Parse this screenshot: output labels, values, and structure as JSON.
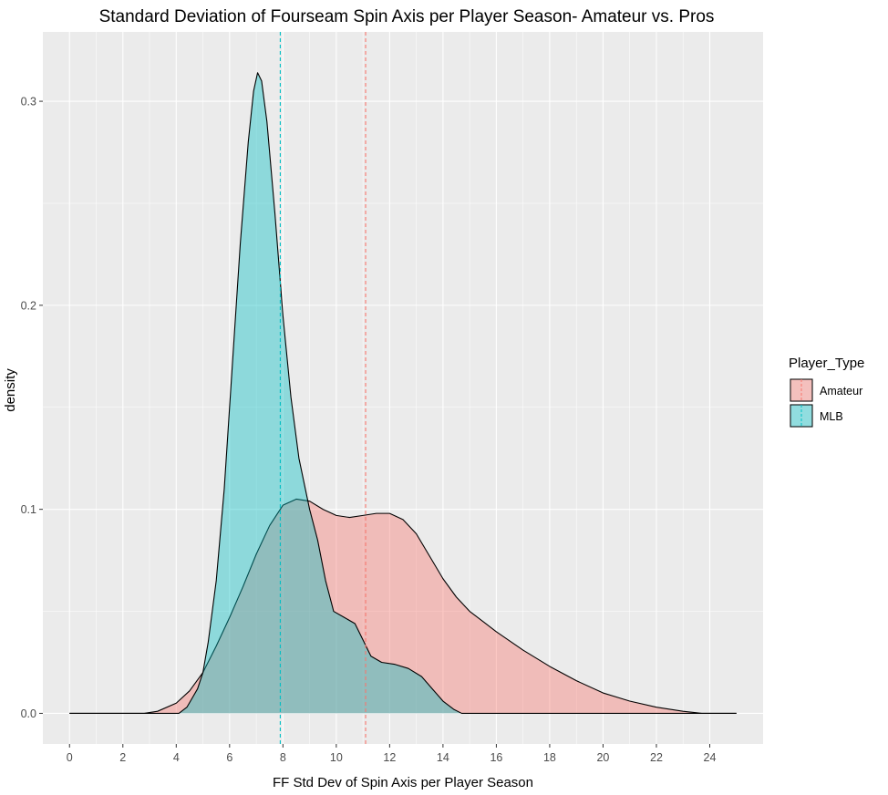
{
  "chart_data": {
    "type": "area",
    "title": "Standard Deviation of Fourseam Spin Axis per Player Season- Amateur vs. Pros",
    "xlabel": "FF Std Dev of Spin Axis per Player Season",
    "ylabel": "density",
    "xlim": [
      -1,
      26
    ],
    "ylim": [
      -0.015,
      0.334
    ],
    "x_ticks": [
      "0",
      "2",
      "4",
      "6",
      "8",
      "10",
      "12",
      "14",
      "16",
      "18",
      "20",
      "22",
      "24"
    ],
    "x_tick_values": [
      0,
      2,
      4,
      6,
      8,
      10,
      12,
      14,
      16,
      18,
      20,
      22,
      24
    ],
    "y_ticks": [
      "0.0",
      "0.1",
      "0.2",
      "0.3"
    ],
    "y_tick_values": [
      0.0,
      0.1,
      0.2,
      0.3
    ],
    "grid": true,
    "legend": {
      "title": "Player_Type",
      "position": "right"
    },
    "series": [
      {
        "name": "Amateur",
        "color": "#F8766D",
        "fill_opacity": 0.4,
        "mean_line": 11.1,
        "points": [
          [
            0,
            0
          ],
          [
            2.8,
            0
          ],
          [
            3.3,
            0.001
          ],
          [
            4.0,
            0.005
          ],
          [
            4.5,
            0.011
          ],
          [
            5.0,
            0.02
          ],
          [
            5.5,
            0.033
          ],
          [
            6.0,
            0.047
          ],
          [
            6.5,
            0.062
          ],
          [
            7.0,
            0.078
          ],
          [
            7.5,
            0.092
          ],
          [
            8.0,
            0.102
          ],
          [
            8.5,
            0.105
          ],
          [
            9.0,
            0.104
          ],
          [
            9.5,
            0.1
          ],
          [
            10.0,
            0.097
          ],
          [
            10.5,
            0.096
          ],
          [
            11.0,
            0.097
          ],
          [
            11.5,
            0.098
          ],
          [
            12.0,
            0.098
          ],
          [
            12.5,
            0.095
          ],
          [
            13.0,
            0.088
          ],
          [
            13.5,
            0.077
          ],
          [
            14.0,
            0.066
          ],
          [
            14.5,
            0.057
          ],
          [
            15.0,
            0.05
          ],
          [
            15.5,
            0.045
          ],
          [
            16.0,
            0.04
          ],
          [
            17.0,
            0.031
          ],
          [
            18.0,
            0.023
          ],
          [
            19.0,
            0.016
          ],
          [
            20.0,
            0.01
          ],
          [
            21.0,
            0.006
          ],
          [
            22.0,
            0.003
          ],
          [
            23.0,
            0.001
          ],
          [
            23.7,
            0
          ],
          [
            25,
            0
          ]
        ]
      },
      {
        "name": "MLB",
        "color": "#00BFC4",
        "fill_opacity": 0.4,
        "mean_line": 7.9,
        "points": [
          [
            0,
            0
          ],
          [
            4.1,
            0
          ],
          [
            4.4,
            0.003
          ],
          [
            4.8,
            0.012
          ],
          [
            5.0,
            0.02
          ],
          [
            5.2,
            0.035
          ],
          [
            5.5,
            0.065
          ],
          [
            5.8,
            0.11
          ],
          [
            6.1,
            0.17
          ],
          [
            6.4,
            0.23
          ],
          [
            6.7,
            0.28
          ],
          [
            6.9,
            0.305
          ],
          [
            7.05,
            0.314
          ],
          [
            7.2,
            0.31
          ],
          [
            7.4,
            0.29
          ],
          [
            7.7,
            0.245
          ],
          [
            8.0,
            0.195
          ],
          [
            8.3,
            0.155
          ],
          [
            8.6,
            0.125
          ],
          [
            9.0,
            0.1
          ],
          [
            9.3,
            0.085
          ],
          [
            9.6,
            0.065
          ],
          [
            9.9,
            0.05
          ],
          [
            10.3,
            0.047
          ],
          [
            10.7,
            0.044
          ],
          [
            11.0,
            0.036
          ],
          [
            11.3,
            0.028
          ],
          [
            11.7,
            0.025
          ],
          [
            12.2,
            0.024
          ],
          [
            12.7,
            0.022
          ],
          [
            13.2,
            0.018
          ],
          [
            13.6,
            0.012
          ],
          [
            14.0,
            0.006
          ],
          [
            14.4,
            0.002
          ],
          [
            14.7,
            0
          ],
          [
            25,
            0
          ]
        ]
      }
    ]
  }
}
